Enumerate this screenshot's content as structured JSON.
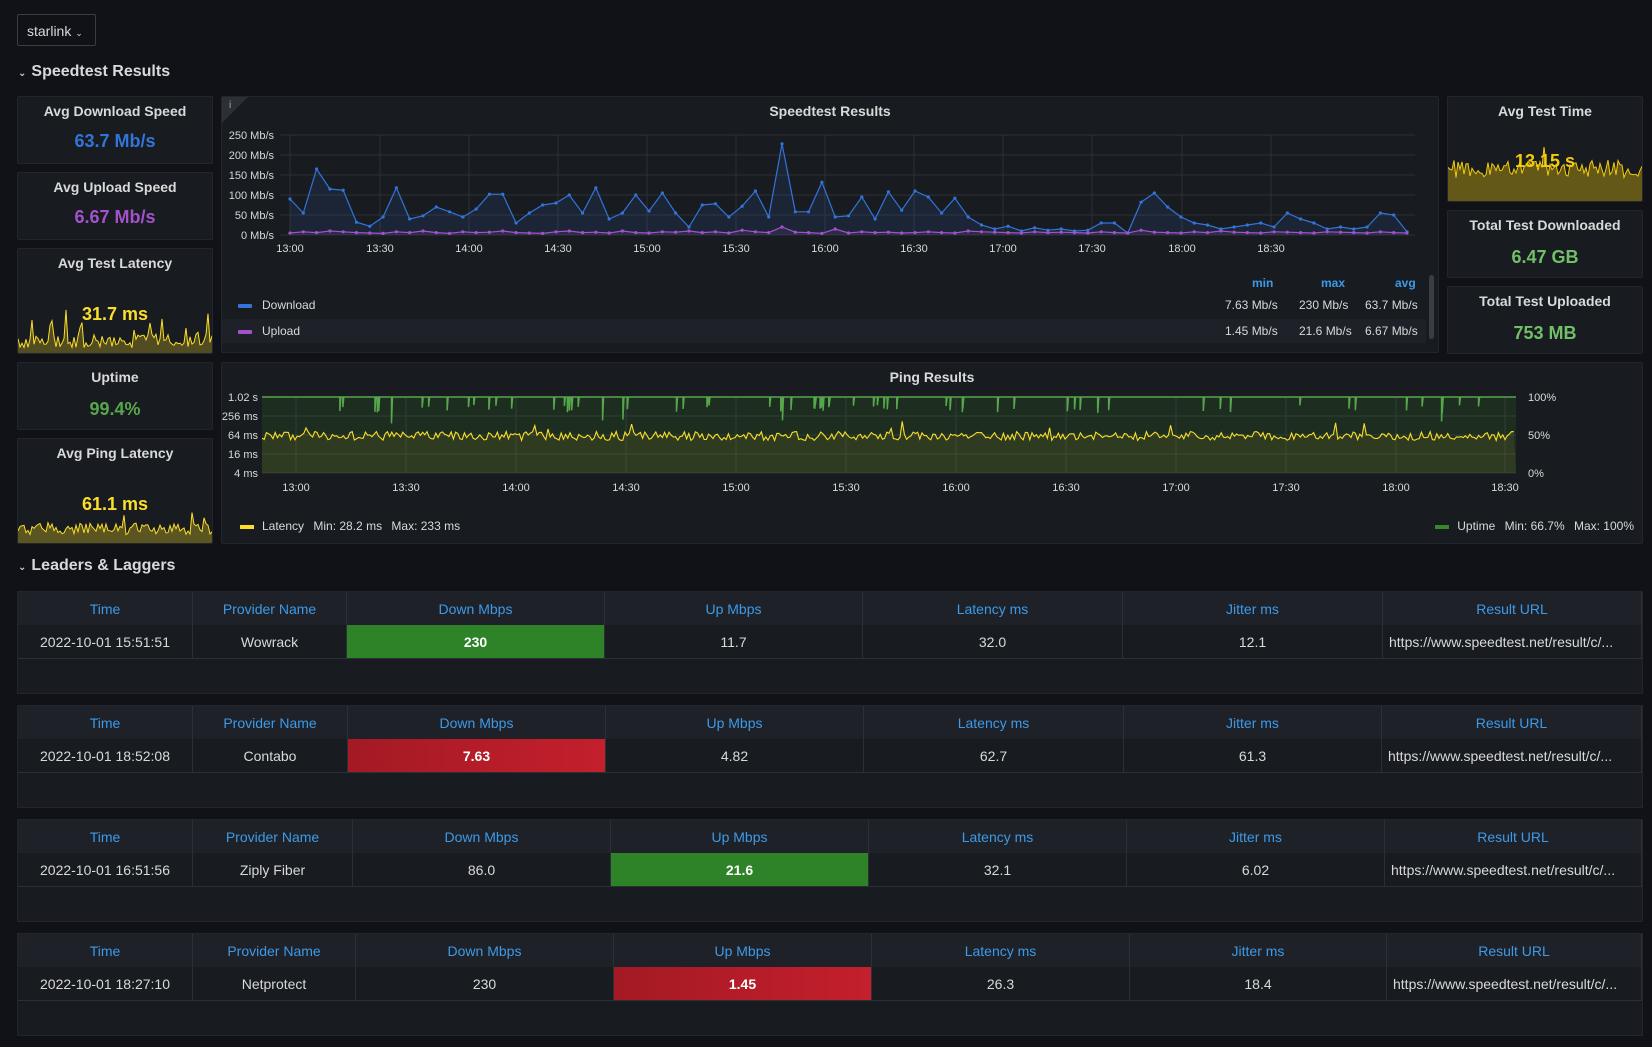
{
  "variable": {
    "label": "starlink"
  },
  "rows": {
    "speedtest": "Speedtest Results",
    "leaders": "Leaders & Laggers"
  },
  "stats": {
    "avg_download": {
      "title": "Avg Download Speed",
      "value": "63.7 Mb/s",
      "color": "#3274d9"
    },
    "avg_upload": {
      "title": "Avg Upload Speed",
      "value": "6.67 Mb/s",
      "color": "#a352cc"
    },
    "avg_latency": {
      "title": "Avg Test Latency",
      "value": "31.7 ms",
      "color": "#fade2a"
    },
    "uptime": {
      "title": "Uptime",
      "value": "99.4%",
      "color": "#56a64b"
    },
    "avg_ping": {
      "title": "Avg Ping Latency",
      "value": "61.1 ms",
      "color": "#fade2a"
    },
    "avg_test_time": {
      "title": "Avg Test Time",
      "value": "13.15 s",
      "color": "#f2cc0c"
    },
    "total_downloaded": {
      "title": "Total Test Downloaded",
      "value": "6.47 GB",
      "color": "#73bf69"
    },
    "total_uploaded": {
      "title": "Total Test Uploaded",
      "value": "753 MB",
      "color": "#73bf69"
    }
  },
  "speedtest_panel": {
    "title": "Speedtest Results",
    "info_icon": "info-icon",
    "legend_headers": {
      "min": "min",
      "max": "max",
      "avg": "avg"
    },
    "legend": [
      {
        "name": "Download",
        "min": "7.63 Mb/s",
        "max": "230 Mb/s",
        "avg": "63.7 Mb/s",
        "color": "#3274d9"
      },
      {
        "name": "Upload",
        "min": "1.45 Mb/s",
        "max": "21.6 Mb/s",
        "avg": "6.67 Mb/s",
        "color": "#a352cc"
      }
    ]
  },
  "ping_panel": {
    "title": "Ping Results",
    "legend_latency": "Latency",
    "latency_min": "Min: 28.2 ms",
    "latency_max": "Max: 233 ms",
    "legend_uptime": "Uptime",
    "uptime_min": "Min: 66.7%",
    "uptime_max": "Max: 100%",
    "latency_color": "#fade2a",
    "uptime_color": "#37872d"
  },
  "chart_data": [
    {
      "type": "line",
      "title": "Speedtest Results",
      "x_ticks": [
        "13:00",
        "13:30",
        "14:00",
        "14:30",
        "15:00",
        "15:30",
        "16:00",
        "16:30",
        "17:00",
        "17:30",
        "18:00",
        "18:30"
      ],
      "y_ticks": [
        "0 Mb/s",
        "50 Mb/s",
        "100 Mb/s",
        "150 Mb/s",
        "200 Mb/s",
        "250 Mb/s"
      ],
      "ylim": [
        0,
        250
      ],
      "series": [
        {
          "name": "Download",
          "values": [
            90,
            55,
            165,
            115,
            112,
            32,
            22,
            45,
            118,
            40,
            48,
            70,
            58,
            45,
            65,
            102,
            102,
            30,
            55,
            75,
            80,
            100,
            55,
            118,
            40,
            55,
            100,
            60,
            105,
            55,
            20,
            75,
            78,
            45,
            72,
            110,
            45,
            228,
            58,
            58,
            132,
            45,
            48,
            95,
            40,
            108,
            62,
            110,
            95,
            55,
            92,
            45,
            25,
            15,
            22,
            10,
            18,
            12,
            15,
            10,
            12,
            30,
            30,
            5,
            82,
            105,
            70,
            45,
            30,
            25,
            15,
            20,
            25,
            30,
            20,
            55,
            40,
            30,
            15,
            20,
            15,
            20,
            55,
            50,
            8
          ]
        },
        {
          "name": "Upload",
          "values": [
            5,
            8,
            6,
            10,
            8,
            6,
            5,
            4,
            8,
            6,
            10,
            6,
            4,
            8,
            6,
            7,
            10,
            6,
            5,
            4,
            8,
            10,
            6,
            7,
            5,
            10,
            6,
            5,
            8,
            7,
            10,
            6,
            8,
            5,
            12,
            8,
            6,
            20,
            7,
            6,
            4,
            15,
            5,
            8,
            6,
            7,
            5,
            6,
            8,
            6,
            5,
            10,
            8,
            7,
            6,
            5,
            8,
            6,
            7,
            6,
            5,
            8,
            6,
            5,
            12,
            7,
            6,
            5,
            8,
            6,
            10,
            7,
            6,
            5,
            8,
            7,
            6,
            5,
            8,
            7,
            6,
            5,
            8,
            6,
            5
          ]
        }
      ]
    },
    {
      "type": "line",
      "title": "Ping Results",
      "x_ticks": [
        "13:00",
        "13:30",
        "14:00",
        "14:30",
        "15:00",
        "15:30",
        "16:00",
        "16:30",
        "17:00",
        "17:30",
        "18:00",
        "18:30"
      ],
      "y_ticks_left": [
        "4 ms",
        "16 ms",
        "64 ms",
        "256 ms",
        "1.02 s"
      ],
      "y_ticks_right": [
        "0%",
        "50%",
        "100%"
      ],
      "series": [
        {
          "name": "Latency",
          "min": 28.2,
          "max": 233,
          "unit": "ms"
        },
        {
          "name": "Uptime",
          "min": 66.7,
          "max": 100,
          "unit": "%"
        }
      ]
    }
  ],
  "tables": [
    {
      "headers": [
        "Time",
        "Provider Name",
        "Down Mbps",
        "Up Mbps",
        "Latency ms",
        "Jitter ms",
        "Result URL"
      ],
      "row": [
        "2022-10-01 15:51:51",
        "Wowrack",
        "230",
        "11.7",
        "32.0",
        "12.1",
        "https://www.speedtest.net/result/c/..."
      ],
      "highlight": {
        "col": 2,
        "tone": "green"
      }
    },
    {
      "headers": [
        "Time",
        "Provider Name",
        "Down Mbps",
        "Up Mbps",
        "Latency ms",
        "Jitter ms",
        "Result URL"
      ],
      "row": [
        "2022-10-01 18:52:08",
        "Contabo",
        "7.63",
        "4.82",
        "62.7",
        "61.3",
        "https://www.speedtest.net/result/c/..."
      ],
      "highlight": {
        "col": 2,
        "tone": "red"
      }
    },
    {
      "headers": [
        "Time",
        "Provider Name",
        "Down Mbps",
        "Up Mbps",
        "Latency ms",
        "Jitter ms",
        "Result URL"
      ],
      "row": [
        "2022-10-01 16:51:56",
        "Ziply Fiber",
        "86.0",
        "21.6",
        "32.1",
        "6.02",
        "https://www.speedtest.net/result/c/..."
      ],
      "highlight": {
        "col": 3,
        "tone": "green"
      }
    },
    {
      "headers": [
        "Time",
        "Provider Name",
        "Down Mbps",
        "Up Mbps",
        "Latency ms",
        "Jitter ms",
        "Result URL"
      ],
      "row": [
        "2022-10-01 18:27:10",
        "Netprotect",
        "230",
        "1.45",
        "26.3",
        "18.4",
        "https://www.speedtest.net/result/c/..."
      ],
      "highlight": {
        "col": 3,
        "tone": "red"
      }
    }
  ]
}
